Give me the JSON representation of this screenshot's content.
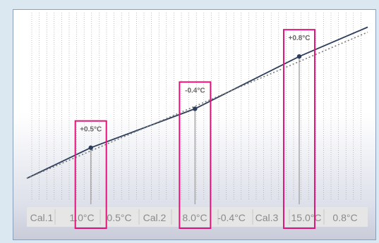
{
  "colors": {
    "line": "#2d3e5c",
    "dotted": "#7a7a7a",
    "highlight": "#e0147a",
    "marker_text": "#666666",
    "table_text": "#8a8a8a",
    "table_bg": "#e6e6e6"
  },
  "chart_data": {
    "type": "line",
    "title": "",
    "xlabel": "",
    "ylabel": "",
    "grid": true,
    "series": [
      {
        "values": [
          {
            "x": -3.3,
            "y": -3.3
          },
          {
            "x": 1.0,
            "y": 1.5
          },
          {
            "x": 8.0,
            "y": 7.6
          },
          {
            "x": 15.0,
            "y": 15.8
          },
          {
            "x": 19.6,
            "y": 20.4
          }
        ]
      },
      {
        "style": "dotted",
        "values": [
          {
            "x": -3.3,
            "y": -3.3
          },
          {
            "x": 19.6,
            "y": 19.6
          }
        ]
      }
    ],
    "xlim": [
      -3.3,
      19.6
    ],
    "ylim": [
      -12,
      22
    ],
    "calibration_points": [
      {
        "label": "Cal.1",
        "x": 1.0,
        "set": "1.0°C",
        "deviation": "0.5°C",
        "marker": "+0.5°C"
      },
      {
        "label": "Cal.2",
        "x": 8.0,
        "set": "8.0°C",
        "deviation": "-0.4°C",
        "marker": "-0.4°C"
      },
      {
        "label": "Cal.3",
        "x": 15.0,
        "set": "15.0°C",
        "deviation": "0.8°C",
        "marker": "+0.8°C"
      }
    ]
  }
}
